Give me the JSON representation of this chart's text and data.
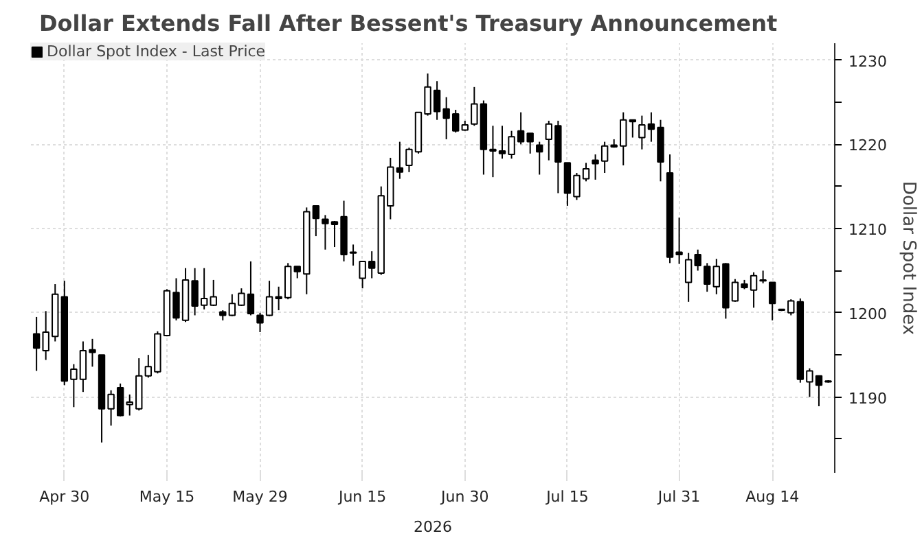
{
  "chart_data": {
    "type": "candlestick",
    "title": "Dollar Extends Fall After Bessent's Treasury Announcement",
    "ylabel": "Dollar Spot Index",
    "annotations": [
      "2026"
    ],
    "categories": [
      null,
      null,
      null,
      "Apr 30",
      null,
      null,
      null,
      null,
      null,
      null,
      null,
      null,
      null,
      null,
      "May 15",
      null,
      null,
      null,
      null,
      null,
      null,
      null,
      null,
      null,
      "May 29",
      null,
      null,
      null,
      null,
      null,
      null,
      null,
      null,
      null,
      null,
      "Jun 15",
      null,
      null,
      null,
      null,
      null,
      null,
      null,
      null,
      null,
      null,
      "Jun 30",
      null,
      null,
      null,
      null,
      null,
      null,
      null,
      null,
      null,
      null,
      "Jul 15",
      null,
      null,
      null,
      null,
      null,
      null,
      null,
      null,
      null,
      null,
      null,
      "Jul 31",
      null,
      null,
      null,
      null,
      null,
      null,
      null,
      null,
      null,
      "Aug 14",
      null,
      null,
      null,
      null,
      null,
      null
    ],
    "series": [
      {
        "name": "Dollar Spot Index - Last Price",
        "color": "#000000",
        "ohlc": [
          [
            1197.5,
            1199.5,
            1193.1,
            1195.8
          ],
          [
            1195.5,
            1200.2,
            1194.4,
            1197.7
          ],
          [
            1197.2,
            1203.4,
            1196.6,
            1202.2
          ],
          [
            1201.9,
            1203.8,
            1191.4,
            1191.9
          ],
          [
            1192.1,
            1193.9,
            1188.8,
            1193.3
          ],
          [
            1192.1,
            1196.6,
            1190.6,
            1195.5
          ],
          [
            1195.6,
            1196.9,
            1193.6,
            1195.3
          ],
          [
            1195.0,
            1195.0,
            1184.6,
            1188.6
          ],
          [
            1188.6,
            1190.8,
            1186.6,
            1190.3
          ],
          [
            1191.1,
            1191.6,
            1187.7,
            1187.8
          ],
          [
            1189.1,
            1190.3,
            1187.8,
            1189.4
          ],
          [
            1188.6,
            1194.6,
            1188.4,
            1192.5
          ],
          [
            1192.5,
            1195.0,
            1192.3,
            1193.6
          ],
          [
            1193.0,
            1197.8,
            1192.8,
            1197.5
          ],
          [
            1197.3,
            1202.8,
            1197.2,
            1202.6
          ],
          [
            1202.4,
            1204.1,
            1199.1,
            1199.4
          ],
          [
            1199.1,
            1205.3,
            1198.9,
            1203.9
          ],
          [
            1203.8,
            1205.3,
            1199.7,
            1200.8
          ],
          [
            1200.9,
            1205.3,
            1200.4,
            1201.7
          ],
          [
            1200.9,
            1203.9,
            1200.8,
            1201.9
          ],
          [
            1200.1,
            1200.3,
            1199.1,
            1199.7
          ],
          [
            1199.7,
            1202.2,
            1199.6,
            1201.1
          ],
          [
            1200.9,
            1202.9,
            1200.8,
            1202.3
          ],
          [
            1202.2,
            1206.1,
            1199.7,
            1199.9
          ],
          [
            1199.7,
            1200.0,
            1197.7,
            1198.8
          ],
          [
            1199.7,
            1203.8,
            1199.6,
            1201.9
          ],
          [
            1201.9,
            1203.1,
            1200.3,
            1201.7
          ],
          [
            1201.8,
            1205.9,
            1201.6,
            1205.5
          ],
          [
            1205.5,
            1205.5,
            1204.1,
            1204.9
          ],
          [
            1204.6,
            1212.5,
            1202.2,
            1212.0
          ],
          [
            1212.7,
            1212.7,
            1209.1,
            1211.2
          ],
          [
            1211.1,
            1211.6,
            1207.5,
            1210.6
          ],
          [
            1210.8,
            1210.9,
            1207.8,
            1210.5
          ],
          [
            1211.4,
            1213.3,
            1206.1,
            1206.9
          ],
          [
            1207.2,
            1208.1,
            1205.6,
            1207.1
          ],
          [
            1204.1,
            1206.1,
            1202.9,
            1206.1
          ],
          [
            1206.1,
            1207.3,
            1204.1,
            1205.3
          ],
          [
            1204.7,
            1215.0,
            1204.5,
            1213.9
          ],
          [
            1212.7,
            1218.4,
            1211.1,
            1217.3
          ],
          [
            1217.2,
            1220.3,
            1215.9,
            1216.7
          ],
          [
            1217.5,
            1219.6,
            1216.7,
            1219.4
          ],
          [
            1219.1,
            1223.8,
            1218.9,
            1223.8
          ],
          [
            1223.6,
            1228.4,
            1223.4,
            1226.8
          ],
          [
            1226.4,
            1227.5,
            1222.9,
            1223.9
          ],
          [
            1224.2,
            1225.6,
            1220.6,
            1223.1
          ],
          [
            1223.6,
            1224.1,
            1221.4,
            1221.6
          ],
          [
            1221.7,
            1222.8,
            1221.6,
            1222.3
          ],
          [
            1222.4,
            1226.8,
            1222.2,
            1224.8
          ],
          [
            1224.8,
            1225.2,
            1216.4,
            1219.4
          ],
          [
            1219.4,
            1222.2,
            1216.1,
            1219.2
          ],
          [
            1219.2,
            1222.2,
            1218.3,
            1218.9
          ],
          [
            1218.8,
            1221.6,
            1218.3,
            1220.9
          ],
          [
            1221.6,
            1223.8,
            1220.0,
            1220.3
          ],
          [
            1221.3,
            1221.3,
            1218.9,
            1220.3
          ],
          [
            1219.9,
            1220.3,
            1216.4,
            1219.1
          ],
          [
            1220.6,
            1222.8,
            1218.1,
            1222.4
          ],
          [
            1222.2,
            1222.8,
            1214.2,
            1217.9
          ],
          [
            1217.8,
            1217.8,
            1212.7,
            1214.2
          ],
          [
            1213.8,
            1216.6,
            1213.4,
            1216.3
          ],
          [
            1215.9,
            1217.8,
            1215.6,
            1217.1
          ],
          [
            1218.1,
            1218.8,
            1215.8,
            1217.7
          ],
          [
            1218.0,
            1220.3,
            1216.6,
            1219.8
          ],
          [
            1219.9,
            1220.6,
            1219.6,
            1219.7
          ],
          [
            1219.8,
            1223.8,
            1217.5,
            1222.9
          ],
          [
            1222.9,
            1222.9,
            1220.8,
            1222.7
          ],
          [
            1220.8,
            1223.4,
            1219.4,
            1222.3
          ],
          [
            1222.4,
            1223.8,
            1220.3,
            1221.8
          ],
          [
            1222.0,
            1222.9,
            1215.6,
            1217.9
          ],
          [
            1216.6,
            1218.8,
            1205.9,
            1206.6
          ],
          [
            1207.2,
            1211.3,
            1205.8,
            1206.9
          ],
          [
            1203.6,
            1207.1,
            1201.3,
            1206.3
          ],
          [
            1206.9,
            1207.5,
            1205.0,
            1205.6
          ],
          [
            1205.5,
            1205.9,
            1202.5,
            1203.4
          ],
          [
            1203.1,
            1206.4,
            1202.2,
            1205.5
          ],
          [
            1205.8,
            1205.9,
            1199.3,
            1200.6
          ],
          [
            1201.4,
            1204.0,
            1201.3,
            1203.6
          ],
          [
            1203.4,
            1203.9,
            1202.8,
            1203.0
          ],
          [
            1202.7,
            1204.8,
            1200.6,
            1204.4
          ],
          [
            1203.8,
            1205.0,
            1203.5,
            1203.9
          ],
          [
            1203.6,
            1203.6,
            1199.1,
            1201.1
          ],
          [
            1200.4,
            1200.4,
            1200.2,
            1200.3
          ],
          [
            1200.0,
            1201.6,
            1199.7,
            1201.4
          ],
          [
            1201.3,
            1201.7,
            1191.7,
            1192.1
          ],
          [
            1191.8,
            1193.4,
            1190.0,
            1193.1
          ],
          [
            1192.5,
            1192.5,
            1188.9,
            1191.4
          ],
          [
            1191.9,
            1192.0,
            1191.7,
            1191.8
          ]
        ]
      }
    ],
    "ylim": [
      1181,
      1232
    ],
    "yticks": [
      {
        "value": 1185,
        "label": null
      },
      1190,
      {
        "value": 1195,
        "label": null
      },
      1200,
      {
        "value": 1205,
        "label": null
      },
      1210,
      {
        "value": 1215,
        "label": null
      },
      1220,
      {
        "value": 1225,
        "label": null
      },
      1230
    ],
    "grid": true,
    "legend": "top left"
  }
}
